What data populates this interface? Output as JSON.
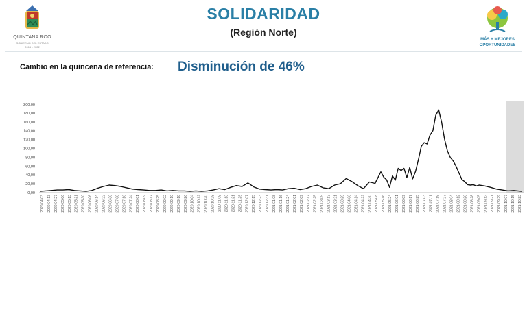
{
  "header": {
    "title": "SOLIDARIDAD",
    "subtitle": "(Región Norte)",
    "left_logo": {
      "name": "QUINTANA ROO",
      "tagline": "GOBIERNO DEL ESTADO",
      "years": "2016 • 2022",
      "icon": "state-crest-icon"
    },
    "right_logo": {
      "line1": "MÁS Y MEJORES",
      "line2": "OPORTUNIDADES",
      "icon": "tree-logo-icon"
    }
  },
  "reference": {
    "label": "Cambio en la quincena de referencia:",
    "value": "Disminución de 46%"
  },
  "colors": {
    "title": "#2a7fa6",
    "highlight": "#1f5e8c",
    "line": "#111111",
    "shade": "#dcdcdc"
  },
  "chart_data": {
    "type": "line",
    "title": "",
    "xlabel": "",
    "ylabel": "",
    "ylim": [
      0,
      200
    ],
    "grid": false,
    "legend": "none",
    "y_ticks": [
      "0,00",
      "20,00",
      "40,00",
      "60,00",
      "80,00",
      "100,00",
      "120,00",
      "140,00",
      "160,00",
      "180,00",
      "200,00"
    ],
    "x_labels": [
      "2020-04-03",
      "2020-04-13",
      "2020-04-27",
      "2020-05-06",
      "2020-05-13",
      "2020-05-21",
      "2020-05-30",
      "2020-06-06",
      "2020-06-14",
      "2020-06-22",
      "2020-06-30",
      "2020-07-08",
      "2020-07-16",
      "2020-07-24",
      "2020-08-01",
      "2020-08-09",
      "2020-08-17",
      "2020-08-25",
      "2020-09-02",
      "2020-09-10",
      "2020-09-18",
      "2020-09-26",
      "2020-10-04",
      "2020-10-12",
      "2020-10-20",
      "2020-10-28",
      "2020-11-05",
      "2020-11-13",
      "2020-11-21",
      "2020-11-29",
      "2020-12-07",
      "2020-12-15",
      "2020-12-23",
      "2020-12-31",
      "2021-01-08",
      "2021-01-16",
      "2021-01-24",
      "2021-02-01",
      "2021-02-09",
      "2021-02-17",
      "2021-02-25",
      "2021-03-05",
      "2021-03-13",
      "2021-03-21",
      "2021-03-29",
      "2021-04-06",
      "2021-04-14",
      "2021-04-22",
      "2021-04-30",
      "2021-05-08",
      "2021-05-16",
      "2021-05-24",
      "2021-06-01",
      "2021-06-09",
      "2021-06-17",
      "2021-06-25",
      "2021-07-03",
      "2021-07-11",
      "2021-07-19",
      "2021-07-27",
      "2021-08-04",
      "2021-08-12",
      "2021-08-20",
      "2021-08-28",
      "2021-09-05",
      "2021-09-13",
      "2021-09-21",
      "2021-09-29",
      "2021-10-07",
      "2021-10-15",
      "2021-10-23"
    ],
    "shaded_region": {
      "x_start": 0.968,
      "x_end": 1.0
    },
    "x": [
      0.0,
      0.012,
      0.024,
      0.036,
      0.048,
      0.06,
      0.072,
      0.084,
      0.096,
      0.108,
      0.12,
      0.132,
      0.144,
      0.156,
      0.168,
      0.18,
      0.192,
      0.204,
      0.216,
      0.228,
      0.24,
      0.252,
      0.264,
      0.276,
      0.288,
      0.3,
      0.312,
      0.324,
      0.336,
      0.348,
      0.36,
      0.372,
      0.384,
      0.396,
      0.408,
      0.42,
      0.432,
      0.444,
      0.456,
      0.468,
      0.48,
      0.492,
      0.504,
      0.516,
      0.528,
      0.54,
      0.552,
      0.564,
      0.576,
      0.588,
      0.6,
      0.612,
      0.624,
      0.636,
      0.648,
      0.66,
      0.672,
      0.684,
      0.696,
      0.708,
      0.714,
      0.72,
      0.726,
      0.732,
      0.738,
      0.744,
      0.75,
      0.756,
      0.762,
      0.768,
      0.774,
      0.78,
      0.786,
      0.792,
      0.798,
      0.804,
      0.81,
      0.816,
      0.822,
      0.828,
      0.834,
      0.84,
      0.846,
      0.852,
      0.858,
      0.864,
      0.87,
      0.876,
      0.882,
      0.888,
      0.894,
      0.9,
      0.906,
      0.912,
      0.924,
      0.936,
      0.948,
      0.96,
      0.972,
      0.984,
      1.0
    ],
    "values": [
      3,
      4,
      5,
      6,
      6,
      7,
      5,
      4,
      3,
      5,
      10,
      14,
      17,
      16,
      14,
      11,
      8,
      7,
      6,
      5,
      5,
      6,
      4,
      5,
      4,
      4,
      3,
      4,
      3,
      4,
      6,
      9,
      7,
      12,
      16,
      14,
      22,
      13,
      8,
      7,
      6,
      7,
      6,
      9,
      10,
      7,
      9,
      14,
      17,
      11,
      9,
      17,
      20,
      32,
      25,
      16,
      9,
      24,
      21,
      47,
      35,
      29,
      12,
      38,
      28,
      55,
      50,
      55,
      34,
      57,
      31,
      48,
      75,
      105,
      113,
      110,
      130,
      140,
      175,
      187,
      160,
      122,
      95,
      80,
      72,
      60,
      45,
      30,
      25,
      18,
      17,
      18,
      15,
      17,
      15,
      12,
      8,
      6,
      4,
      5,
      3
    ]
  }
}
